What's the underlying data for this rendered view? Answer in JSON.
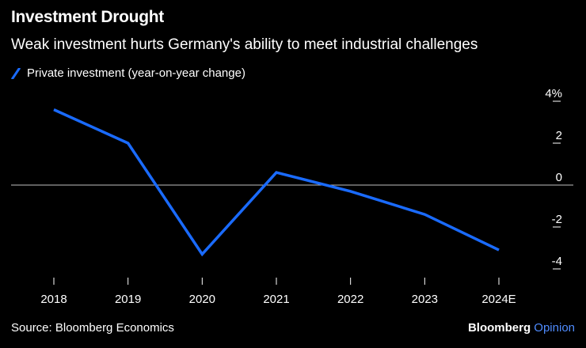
{
  "header": {
    "title": "Investment Drought",
    "subtitle": "Weak investment hurts Germany's ability to meet industrial challenges"
  },
  "footer": {
    "source": "Source: Bloomberg Economics",
    "brand_main": "Bloomberg",
    "brand_accent": "Opinion"
  },
  "colors": {
    "background": "#000000",
    "series": "#1a6bff",
    "zero_line": "#bfbfbf",
    "text": "#ffffff"
  },
  "chart_data": {
    "type": "line",
    "title": "Investment Drought",
    "subtitle": "Weak investment hurts Germany's ability to meet industrial challenges",
    "categories": [
      "2018",
      "2019",
      "2020",
      "2021",
      "2022",
      "2023",
      "2024E"
    ],
    "series": [
      {
        "name": "Private investment (year-on-year change)",
        "values": [
          3.6,
          2.0,
          -3.3,
          0.6,
          -0.3,
          -1.4,
          -3.1
        ]
      }
    ],
    "y_ticks": [
      {
        "value": 4,
        "label": "4%"
      },
      {
        "value": 2,
        "label": "2"
      },
      {
        "value": 0,
        "label": "0"
      },
      {
        "value": -2,
        "label": "-2"
      },
      {
        "value": -4,
        "label": "-4"
      }
    ],
    "ylim": [
      -4,
      4
    ],
    "y_axis_side": "right",
    "legend_position": "top-left",
    "xlabel": "",
    "ylabel": ""
  }
}
